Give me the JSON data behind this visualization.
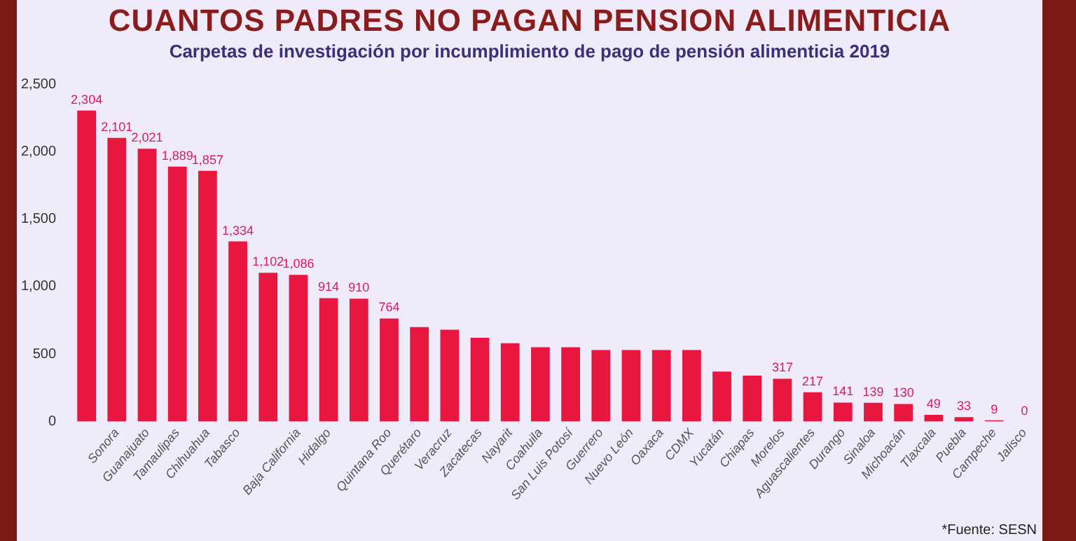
{
  "chart_data": {
    "type": "bar",
    "title": "Carpetas de investigación por incumplimiento de pago de pensión alimenticia 2019",
    "annotations": [
      "CUANTOS PADRES NO PAGAN PENSION ALIMENTICIA",
      "*Fuente: SESN"
    ],
    "categories": [
      null,
      "Sonora",
      "Guanajuato",
      "Tamaulipas",
      "Chihuahua",
      "Tabasco",
      null,
      "Baja California",
      "Hidalgo",
      null,
      "Quintana Roo",
      "Querétaro",
      "Veracruz",
      "Zacatecas",
      "Nayarit",
      "Coahuila",
      "San Luis Potosí",
      "Guerrero",
      "Nuevo León",
      "Oaxaca",
      "CDMX",
      "Yucatán",
      "Chiapas",
      "Morelos",
      "Aguascalientes",
      "Durango",
      "Sinaloa",
      "Michoacán",
      "Tlaxcala",
      "Puebla",
      "Campeche",
      "Jalisco"
    ],
    "values": [
      2304,
      2101,
      2021,
      1889,
      1857,
      1334,
      1102,
      1086,
      914,
      910,
      764,
      700,
      680,
      620,
      580,
      550,
      550,
      530,
      530,
      530,
      530,
      370,
      340,
      317,
      217,
      141,
      139,
      130,
      49,
      33,
      9,
      0
    ],
    "value_labels": [
      "2,304",
      "2,101",
      "2,021",
      "1,889",
      "1,857",
      "1,334",
      "1,102",
      "1,086",
      "914",
      "910",
      "764",
      null,
      null,
      null,
      null,
      null,
      null,
      null,
      null,
      null,
      null,
      null,
      null,
      "317",
      "217",
      "141",
      "139",
      "130",
      "49",
      "33",
      "9",
      "0"
    ],
    "color": "#e8173f",
    "ylim": [
      0,
      2500
    ],
    "yticks": [
      0,
      500,
      {
        "value": 1000,
        "label": "1,000"
      },
      {
        "value": 1500,
        "label": "1,500"
      },
      {
        "value": 2000,
        "label": "2,000"
      },
      {
        "value": 2500,
        "label": "2,500"
      }
    ],
    "grid": false,
    "legend": false
  }
}
